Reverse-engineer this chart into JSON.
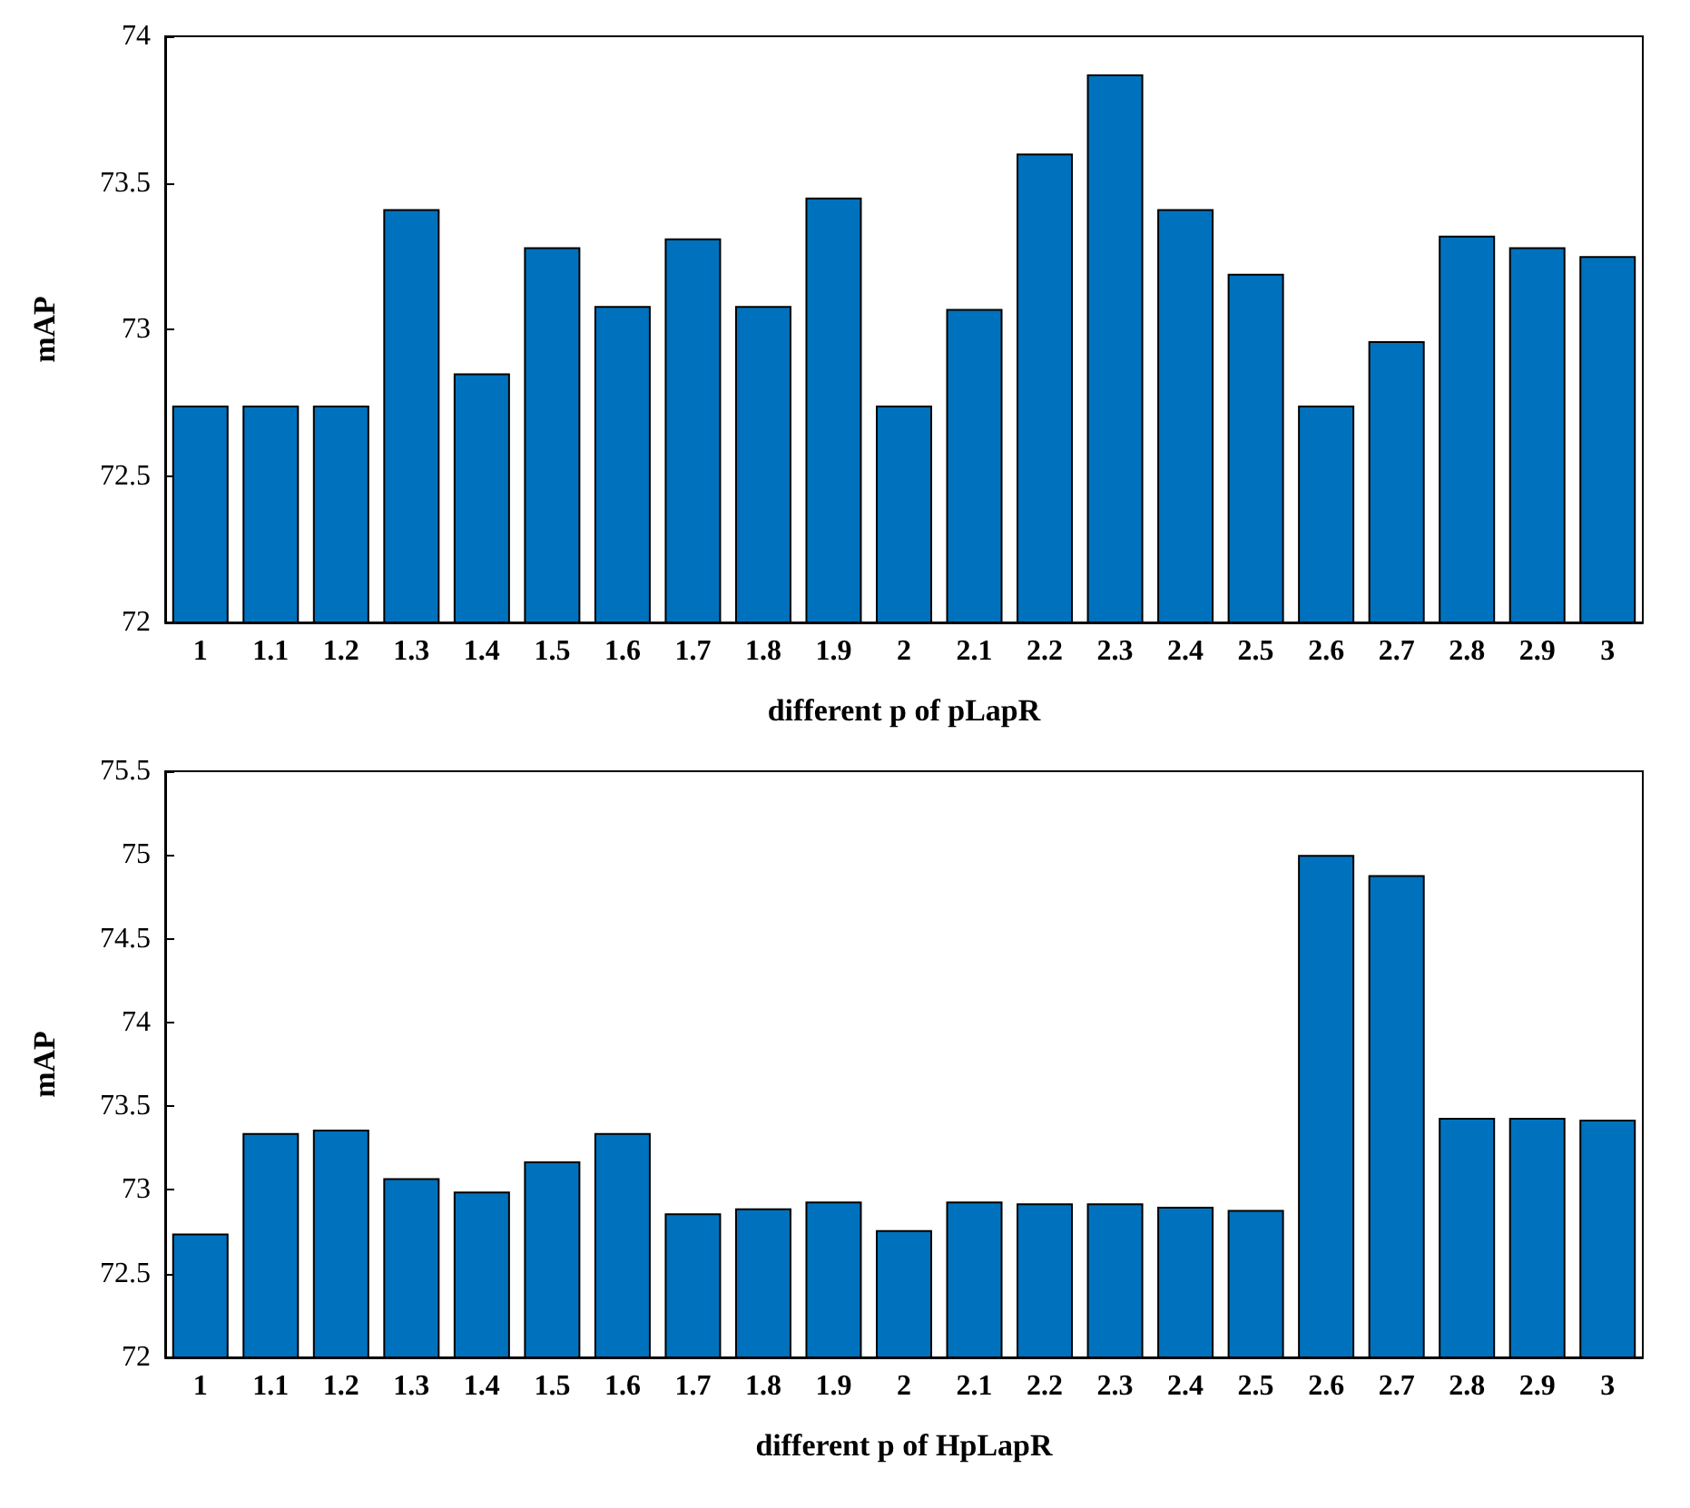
{
  "chart_data": [
    {
      "type": "bar",
      "xlabel": "different p of pLapR",
      "ylabel": "mAP",
      "categories": [
        "1",
        "1.1",
        "1.2",
        "1.3",
        "1.4",
        "1.5",
        "1.6",
        "1.7",
        "1.8",
        "1.9",
        "2",
        "2.1",
        "2.2",
        "2.3",
        "2.4",
        "2.5",
        "2.6",
        "2.7",
        "2.8",
        "2.9",
        "3"
      ],
      "series": [
        {
          "color": "#0072bd",
          "values": [
            72.74,
            72.74,
            72.74,
            73.41,
            72.85,
            73.28,
            73.08,
            73.31,
            73.08,
            73.45,
            72.74,
            73.07,
            73.6,
            73.87,
            73.41,
            73.19,
            72.74,
            72.96,
            73.32,
            73.28,
            73.25
          ]
        }
      ],
      "ylim": [
        72,
        74
      ],
      "yticks": [
        72,
        72.5,
        73,
        73.5,
        74
      ]
    },
    {
      "type": "bar",
      "xlabel": "different p of HpLapR",
      "ylabel": "mAP",
      "categories": [
        "1",
        "1.1",
        "1.2",
        "1.3",
        "1.4",
        "1.5",
        "1.6",
        "1.7",
        "1.8",
        "1.9",
        "2",
        "2.1",
        "2.2",
        "2.3",
        "2.4",
        "2.5",
        "2.6",
        "2.7",
        "2.8",
        "2.9",
        "3"
      ],
      "series": [
        {
          "color": "#0072bd",
          "values": [
            72.74,
            73.34,
            73.36,
            73.07,
            72.99,
            73.17,
            73.34,
            72.86,
            72.89,
            72.93,
            72.76,
            72.93,
            72.92,
            72.92,
            72.9,
            72.88,
            75.0,
            74.88,
            73.43,
            73.43,
            73.42
          ]
        }
      ],
      "ylim": [
        72,
        75.5
      ],
      "yticks": [
        72,
        72.5,
        73,
        73.5,
        74,
        74.5,
        75,
        75.5
      ]
    }
  ]
}
